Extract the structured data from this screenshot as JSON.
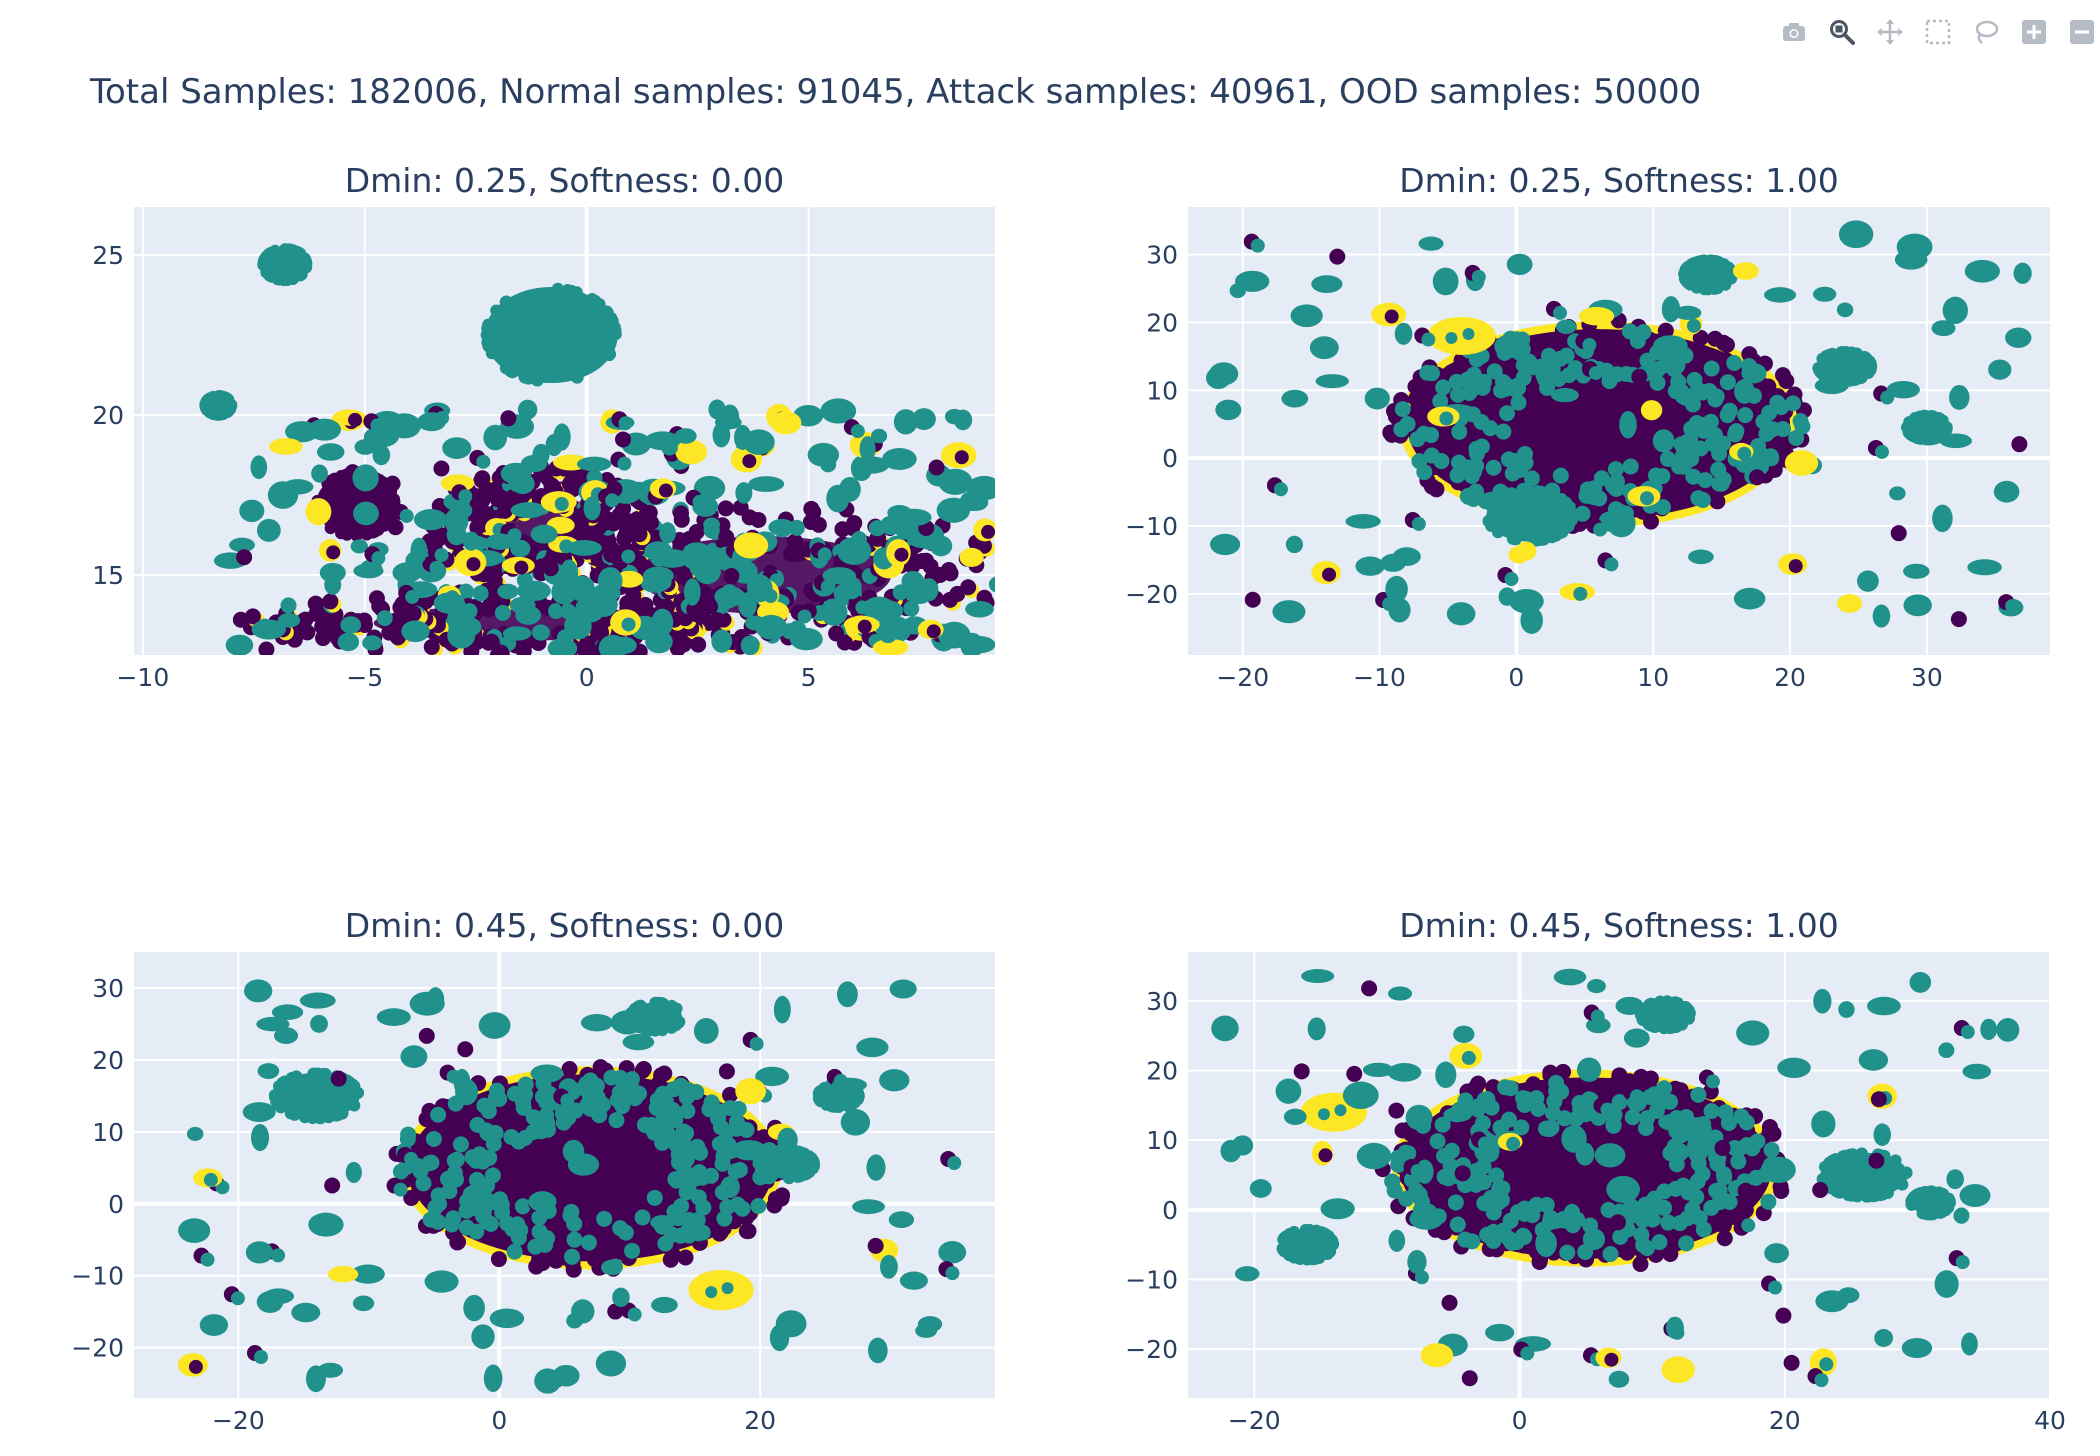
{
  "modebar": {
    "buttons": [
      {
        "name": "camera-icon",
        "title": "Download plot as a png"
      },
      {
        "name": "zoom-icon",
        "title": "Zoom",
        "active": true
      },
      {
        "name": "pan-icon",
        "title": "Pan"
      },
      {
        "name": "box-select-icon",
        "title": "Box Select"
      },
      {
        "name": "lasso-select-icon",
        "title": "Lasso Select"
      },
      {
        "name": "zoom-in-icon",
        "title": "Zoom in"
      },
      {
        "name": "zoom-out-icon",
        "title": "Zoom out"
      }
    ]
  },
  "suptitle": "Total Samples: 182006, Normal samples: 91045, Attack samples: 40961, OOD samples: 50000",
  "colors": {
    "background": "#ffffff",
    "plot_bg": "#e5ecf6",
    "grid": "#ffffff",
    "text": "#2a3f5f",
    "normal": "#440154",
    "ood": "#21918c",
    "attack": "#fde725"
  },
  "chart_data": [
    {
      "type": "scatter",
      "title": "Dmin: 0.25, Softness: 0.00",
      "xlim": [
        -10.2,
        9.2
      ],
      "ylim": [
        12.5,
        26.5
      ],
      "xticks": [
        -10,
        -5,
        0,
        5
      ],
      "yticks": [
        15,
        20,
        25
      ],
      "xticklabels": [
        "−10",
        "−5",
        "0",
        "5"
      ],
      "yticklabels": [
        "15",
        "20",
        "25"
      ],
      "clusters": [
        {
          "cls": "ood",
          "x": -0.8,
          "y": 22.5,
          "rx": 1.5,
          "ry": 1.5
        },
        {
          "cls": "ood",
          "x": -6.8,
          "y": 24.7,
          "rx": 0.5,
          "ry": 0.5
        },
        {
          "cls": "ood",
          "x": -8.3,
          "y": 20.3,
          "rx": 0.3,
          "ry": 0.3
        },
        {
          "cls": "normal",
          "x": -5.2,
          "y": 17.2,
          "rx": 0.9,
          "ry": 1.0
        },
        {
          "cls": "normal",
          "x": -1.0,
          "y": 16.5,
          "rx": 2.5,
          "ry": 1.8,
          "ring": true
        },
        {
          "cls": "normal",
          "x": 4.0,
          "y": 15.0,
          "rx": 5.2,
          "ry": 2.2,
          "ring": true
        },
        {
          "cls": "normal",
          "x": -1.5,
          "y": 13.5,
          "rx": 6.0,
          "ry": 1.0,
          "ring": true
        }
      ],
      "scattered": {
        "seed": 11,
        "n": 300,
        "xmin": -8.2,
        "xmax": 9.0,
        "ymin": 12.6,
        "ymax": 20.2
      }
    },
    {
      "type": "scatter",
      "title": "Dmin: 0.25, Softness: 1.00",
      "xlim": [
        -24,
        39
      ],
      "ylim": [
        -29,
        37
      ],
      "xticks": [
        -20,
        -10,
        0,
        10,
        20,
        30
      ],
      "yticks": [
        -20,
        -10,
        0,
        10,
        20,
        30
      ],
      "xticklabels": [
        "−20",
        "−10",
        "0",
        "10",
        "20",
        "30"
      ],
      "yticklabels": [
        "−20",
        "−10",
        "0",
        "10",
        "20",
        "30"
      ],
      "clusters": [
        {
          "cls": "normal",
          "x": 6,
          "y": 5,
          "rx": 14,
          "ry": 14,
          "core": true
        },
        {
          "cls": "ood",
          "x": 6,
          "y": 5,
          "rx": 15,
          "ry": 14,
          "ring": true
        },
        {
          "cls": "ood",
          "x": 1,
          "y": -8.5,
          "rx": 3.2,
          "ry": 3.8
        },
        {
          "cls": "ood",
          "x": 14,
          "y": 27,
          "rx": 1.8,
          "ry": 2.2
        },
        {
          "cls": "ood",
          "x": 24,
          "y": 13.5,
          "rx": 2.0,
          "ry": 2.2
        },
        {
          "cls": "ood",
          "x": 30,
          "y": 4.5,
          "rx": 1.5,
          "ry": 1.8
        },
        {
          "cls": "attack",
          "x": -4,
          "y": 18,
          "rx": 2.5,
          "ry": 2.8
        }
      ],
      "scattered": {
        "seed": 22,
        "n": 110,
        "xmin": -22,
        "xmax": 37,
        "ymin": -25,
        "ymax": 33
      }
    },
    {
      "type": "scatter",
      "title": "Dmin: 0.45, Softness: 0.00",
      "xlim": [
        -28,
        38
      ],
      "ylim": [
        -27,
        35
      ],
      "xticks": [
        -20,
        0,
        20
      ],
      "yticks": [
        -20,
        -10,
        0,
        10,
        20,
        30
      ],
      "xticklabels": [
        "−20",
        "0",
        "20"
      ],
      "yticklabels": [
        "−20",
        "−10",
        "0",
        "10",
        "20",
        "30"
      ],
      "clusters": [
        {
          "cls": "normal",
          "x": 7,
          "y": 5,
          "rx": 14,
          "ry": 13,
          "core": true
        },
        {
          "cls": "ood",
          "x": 7,
          "y": 5,
          "rx": 15,
          "ry": 13,
          "ring": true
        },
        {
          "cls": "ood",
          "x": -14,
          "y": 15,
          "rx": 3.3,
          "ry": 3.2
        },
        {
          "cls": "ood",
          "x": 12,
          "y": 26,
          "rx": 2.0,
          "ry": 2.0
        },
        {
          "cls": "ood",
          "x": 22,
          "y": 5.5,
          "rx": 2.2,
          "ry": 2.0
        },
        {
          "cls": "ood",
          "x": 26,
          "y": 15,
          "rx": 1.6,
          "ry": 1.6
        },
        {
          "cls": "attack",
          "x": 17,
          "y": -12,
          "rx": 2.5,
          "ry": 2.8
        }
      ],
      "scattered": {
        "seed": 33,
        "n": 110,
        "xmin": -25,
        "xmax": 35,
        "ymin": -25,
        "ymax": 31
      }
    },
    {
      "type": "scatter",
      "title": "Dmin: 0.45, Softness: 1.00",
      "xlim": [
        -25,
        40
      ],
      "ylim": [
        -27,
        37
      ],
      "xticks": [
        -20,
        0,
        20,
        40
      ],
      "yticks": [
        -20,
        -10,
        0,
        10,
        20,
        30
      ],
      "xticklabels": [
        "−20",
        "0",
        "20",
        "40"
      ],
      "yticklabels": [
        "−20",
        "−10",
        "0",
        "10",
        "20",
        "30"
      ],
      "clusters": [
        {
          "cls": "normal",
          "x": 5,
          "y": 6,
          "rx": 14,
          "ry": 13,
          "core": true
        },
        {
          "cls": "ood",
          "x": 5,
          "y": 6,
          "rx": 15,
          "ry": 13,
          "ring": true
        },
        {
          "cls": "ood",
          "x": 26,
          "y": 5,
          "rx": 3.3,
          "ry": 3.2
        },
        {
          "cls": "ood",
          "x": -16,
          "y": -5,
          "rx": 2.0,
          "ry": 2.2
        },
        {
          "cls": "ood",
          "x": 11,
          "y": 28,
          "rx": 1.9,
          "ry": 2.0
        },
        {
          "cls": "ood",
          "x": 31,
          "y": 1,
          "rx": 1.5,
          "ry": 1.7
        },
        {
          "cls": "attack",
          "x": -14,
          "y": 14,
          "rx": 2.5,
          "ry": 2.8
        }
      ],
      "scattered": {
        "seed": 44,
        "n": 110,
        "xmin": -23,
        "xmax": 37,
        "ymin": -25,
        "ymax": 34
      }
    }
  ]
}
